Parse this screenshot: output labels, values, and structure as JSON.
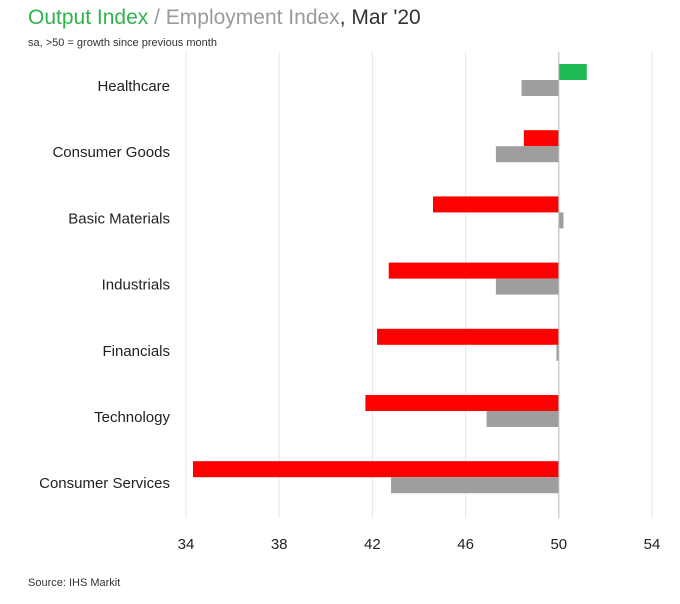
{
  "title": {
    "output": "Output Index",
    "sep": " / ",
    "employment": "Employment Index",
    "date": ", Mar '20"
  },
  "subtitle": "sa, >50 = growth since previous month",
  "source": "Source: IHS Markit",
  "colors": {
    "output_negative": "#ff0000",
    "output_positive": "#1db954",
    "employment": "#9e9e9e",
    "grid": "#e6e6e6",
    "axis": "#bdbdbd"
  },
  "chart_data": {
    "type": "bar",
    "orientation": "horizontal",
    "baseline": 50,
    "categories": [
      "Healthcare",
      "Consumer Goods",
      "Basic Materials",
      "Industrials",
      "Financials",
      "Technology",
      "Consumer Services"
    ],
    "series": [
      {
        "name": "Output Index",
        "values": [
          51.2,
          48.5,
          44.6,
          42.7,
          42.2,
          41.7,
          34.3
        ]
      },
      {
        "name": "Employment Index",
        "values": [
          48.4,
          47.3,
          50.2,
          47.3,
          49.9,
          46.9,
          42.8
        ]
      }
    ],
    "xlim": [
      34,
      54
    ],
    "xticks": [
      "34",
      "38",
      "42",
      "46",
      "50",
      "54"
    ],
    "title": "Output Index / Employment Index, Mar '20",
    "xlabel": "",
    "ylabel": "",
    "grid": true
  }
}
